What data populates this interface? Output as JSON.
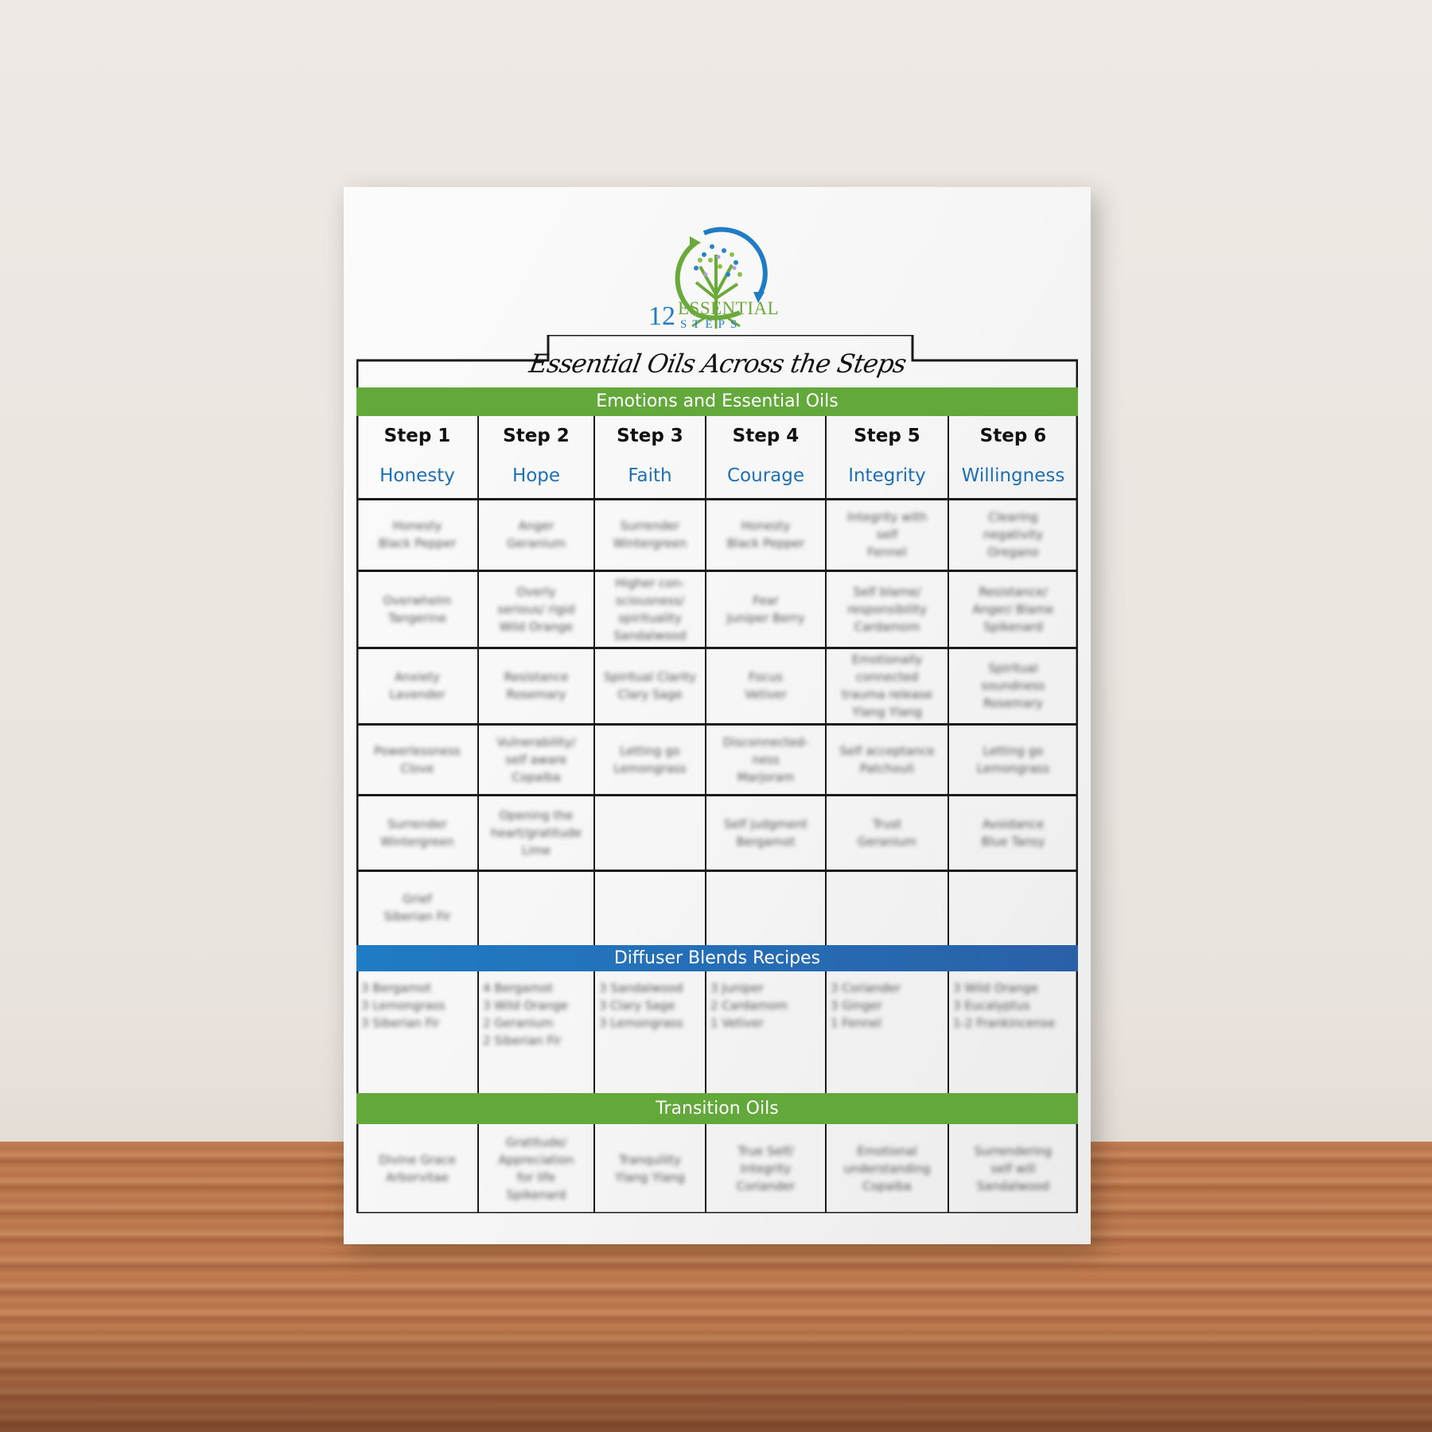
{
  "logo": {
    "number": "12",
    "word1": "ESSENTIAL",
    "word2": "STEPS"
  },
  "title": "Essential Oils Across the Steps",
  "colors": {
    "green": "#63a83a",
    "blue": "#1f74c0",
    "virtue_text": "#1f6fb4"
  },
  "sections": {
    "emotions": "Emotions and Essential Oils",
    "diffuser": "Diffuser Blends Recipes",
    "transition": "Transition Oils"
  },
  "steps": [
    {
      "step": "Step 1",
      "virtue": "Honesty"
    },
    {
      "step": "Step 2",
      "virtue": "Hope"
    },
    {
      "step": "Step 3",
      "virtue": "Faith"
    },
    {
      "step": "Step 4",
      "virtue": "Courage"
    },
    {
      "step": "Step 5",
      "virtue": "Integrity"
    },
    {
      "step": "Step 6",
      "virtue": "Willingness"
    }
  ],
  "emotion_rows": [
    [
      "Honesty\nBlack Pepper",
      "Anger\nGeranium",
      "Surrender\nWintergreen",
      "Honesty\nBlack Pepper",
      "Integrity with\nself\nFennel",
      "Clearing\nnegativity\nOregano"
    ],
    [
      "Overwhelm\nTangerine",
      "Overly\nserious/ rigid\nWild Orange",
      "Higher con-\nsciousness/\nspirituality\nSandalwood",
      "Fear\nJuniper Berry",
      "Self blame/\nresponsibility\nCardamom",
      "Resistance/\nAnger/ Blame\nSpikenard"
    ],
    [
      "Anxiety\nLavender",
      "Resistance\nRosemary",
      "Spiritual Clarity\nClary Sage",
      "Focus\nVetiver",
      "Emotionally\nconnected\ntrauma release\nYlang Ylang",
      "Spiritual\nsoundness\nRosemary"
    ],
    [
      "Powerlessness\nClove",
      "Vulnerability/\nself aware\nCopaiba",
      "Letting go\nLemongrass",
      "Disconnected-\nness\nMarjoram",
      "Self acceptance\nPatchouli",
      "Letting go\nLemongrass"
    ],
    [
      "Surrender\nWintergreen",
      "Opening the\nheart/gratitude\nLime",
      "",
      "Self judgment\nBergamot",
      "Trust\nGeranium",
      "Avoidance\nBlue Tansy"
    ],
    [
      "Grief\nSiberian Fir",
      "",
      "",
      "",
      "",
      ""
    ]
  ],
  "diffuser_blends": [
    "3 Bergamot\n3 Lemongrass\n3 Siberian Fir",
    "4 Bergamot\n3 Wild Orange\n2 Geranium\n2 Siberian Fir",
    "3 Sandalwood\n3 Clary Sage\n3 Lemongrass",
    "3 Juniper\n2 Cardamom\n1 Vetiver",
    "3 Coriander\n3 Ginger\n1 Fennel",
    "3 Wild Orange\n3 Eucalyptus\n1-2 Frankincense"
  ],
  "transition_oils": [
    "Divine Grace\nArborvitae",
    "Gratitude/\nAppreciation\nfor life\nSpikenard",
    "Tranquility\nYlang Ylang",
    "True Self/\nIntegrity\nCoriander",
    "Emotional\nunderstanding\nCopaiba",
    "Surrendering\nself will\nSandalwood"
  ]
}
